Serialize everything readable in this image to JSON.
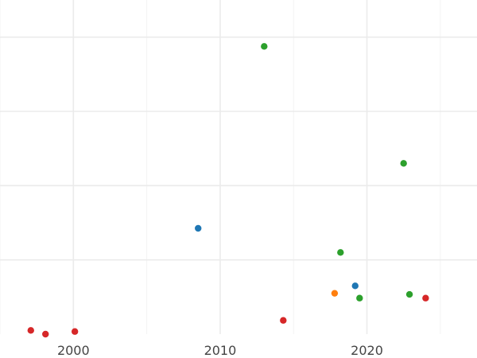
{
  "chart_data": {
    "type": "scatter",
    "title": "",
    "xlabel": "",
    "ylabel": "",
    "xlim": [
      1995,
      2027.5
    ],
    "x_ticks": [
      2000,
      2010,
      2020
    ],
    "x_tick_labels": [
      "2000",
      "2010",
      "2020"
    ],
    "x_minor_ticks": [
      1995,
      2005,
      2015,
      2025
    ],
    "ylim": [
      0,
      9
    ],
    "y_major_gridlines": [
      2,
      4,
      6,
      8
    ],
    "y_tick_labels_shown": false,
    "grid": true,
    "legend": "none",
    "colors": {
      "blue": "#1f77b4",
      "orange": "#ff7f0e",
      "green": "#2ca02c",
      "red": "#d62728"
    },
    "points": [
      {
        "x": 2008.5,
        "y": 2.85,
        "color": "blue"
      },
      {
        "x": 2019.2,
        "y": 1.3,
        "color": "blue"
      },
      {
        "x": 2017.8,
        "y": 1.1,
        "color": "orange"
      },
      {
        "x": 2013.0,
        "y": 7.75,
        "color": "green"
      },
      {
        "x": 2022.5,
        "y": 4.6,
        "color": "green"
      },
      {
        "x": 2018.2,
        "y": 2.2,
        "color": "green"
      },
      {
        "x": 2019.5,
        "y": 0.97,
        "color": "green"
      },
      {
        "x": 2022.9,
        "y": 1.07,
        "color": "green"
      },
      {
        "x": 1997.1,
        "y": 0.1,
        "color": "red"
      },
      {
        "x": 1998.1,
        "y": 0.0,
        "color": "red"
      },
      {
        "x": 2000.1,
        "y": 0.07,
        "color": "red"
      },
      {
        "x": 2014.3,
        "y": 0.37,
        "color": "red"
      },
      {
        "x": 2024.0,
        "y": 0.97,
        "color": "red"
      }
    ]
  }
}
